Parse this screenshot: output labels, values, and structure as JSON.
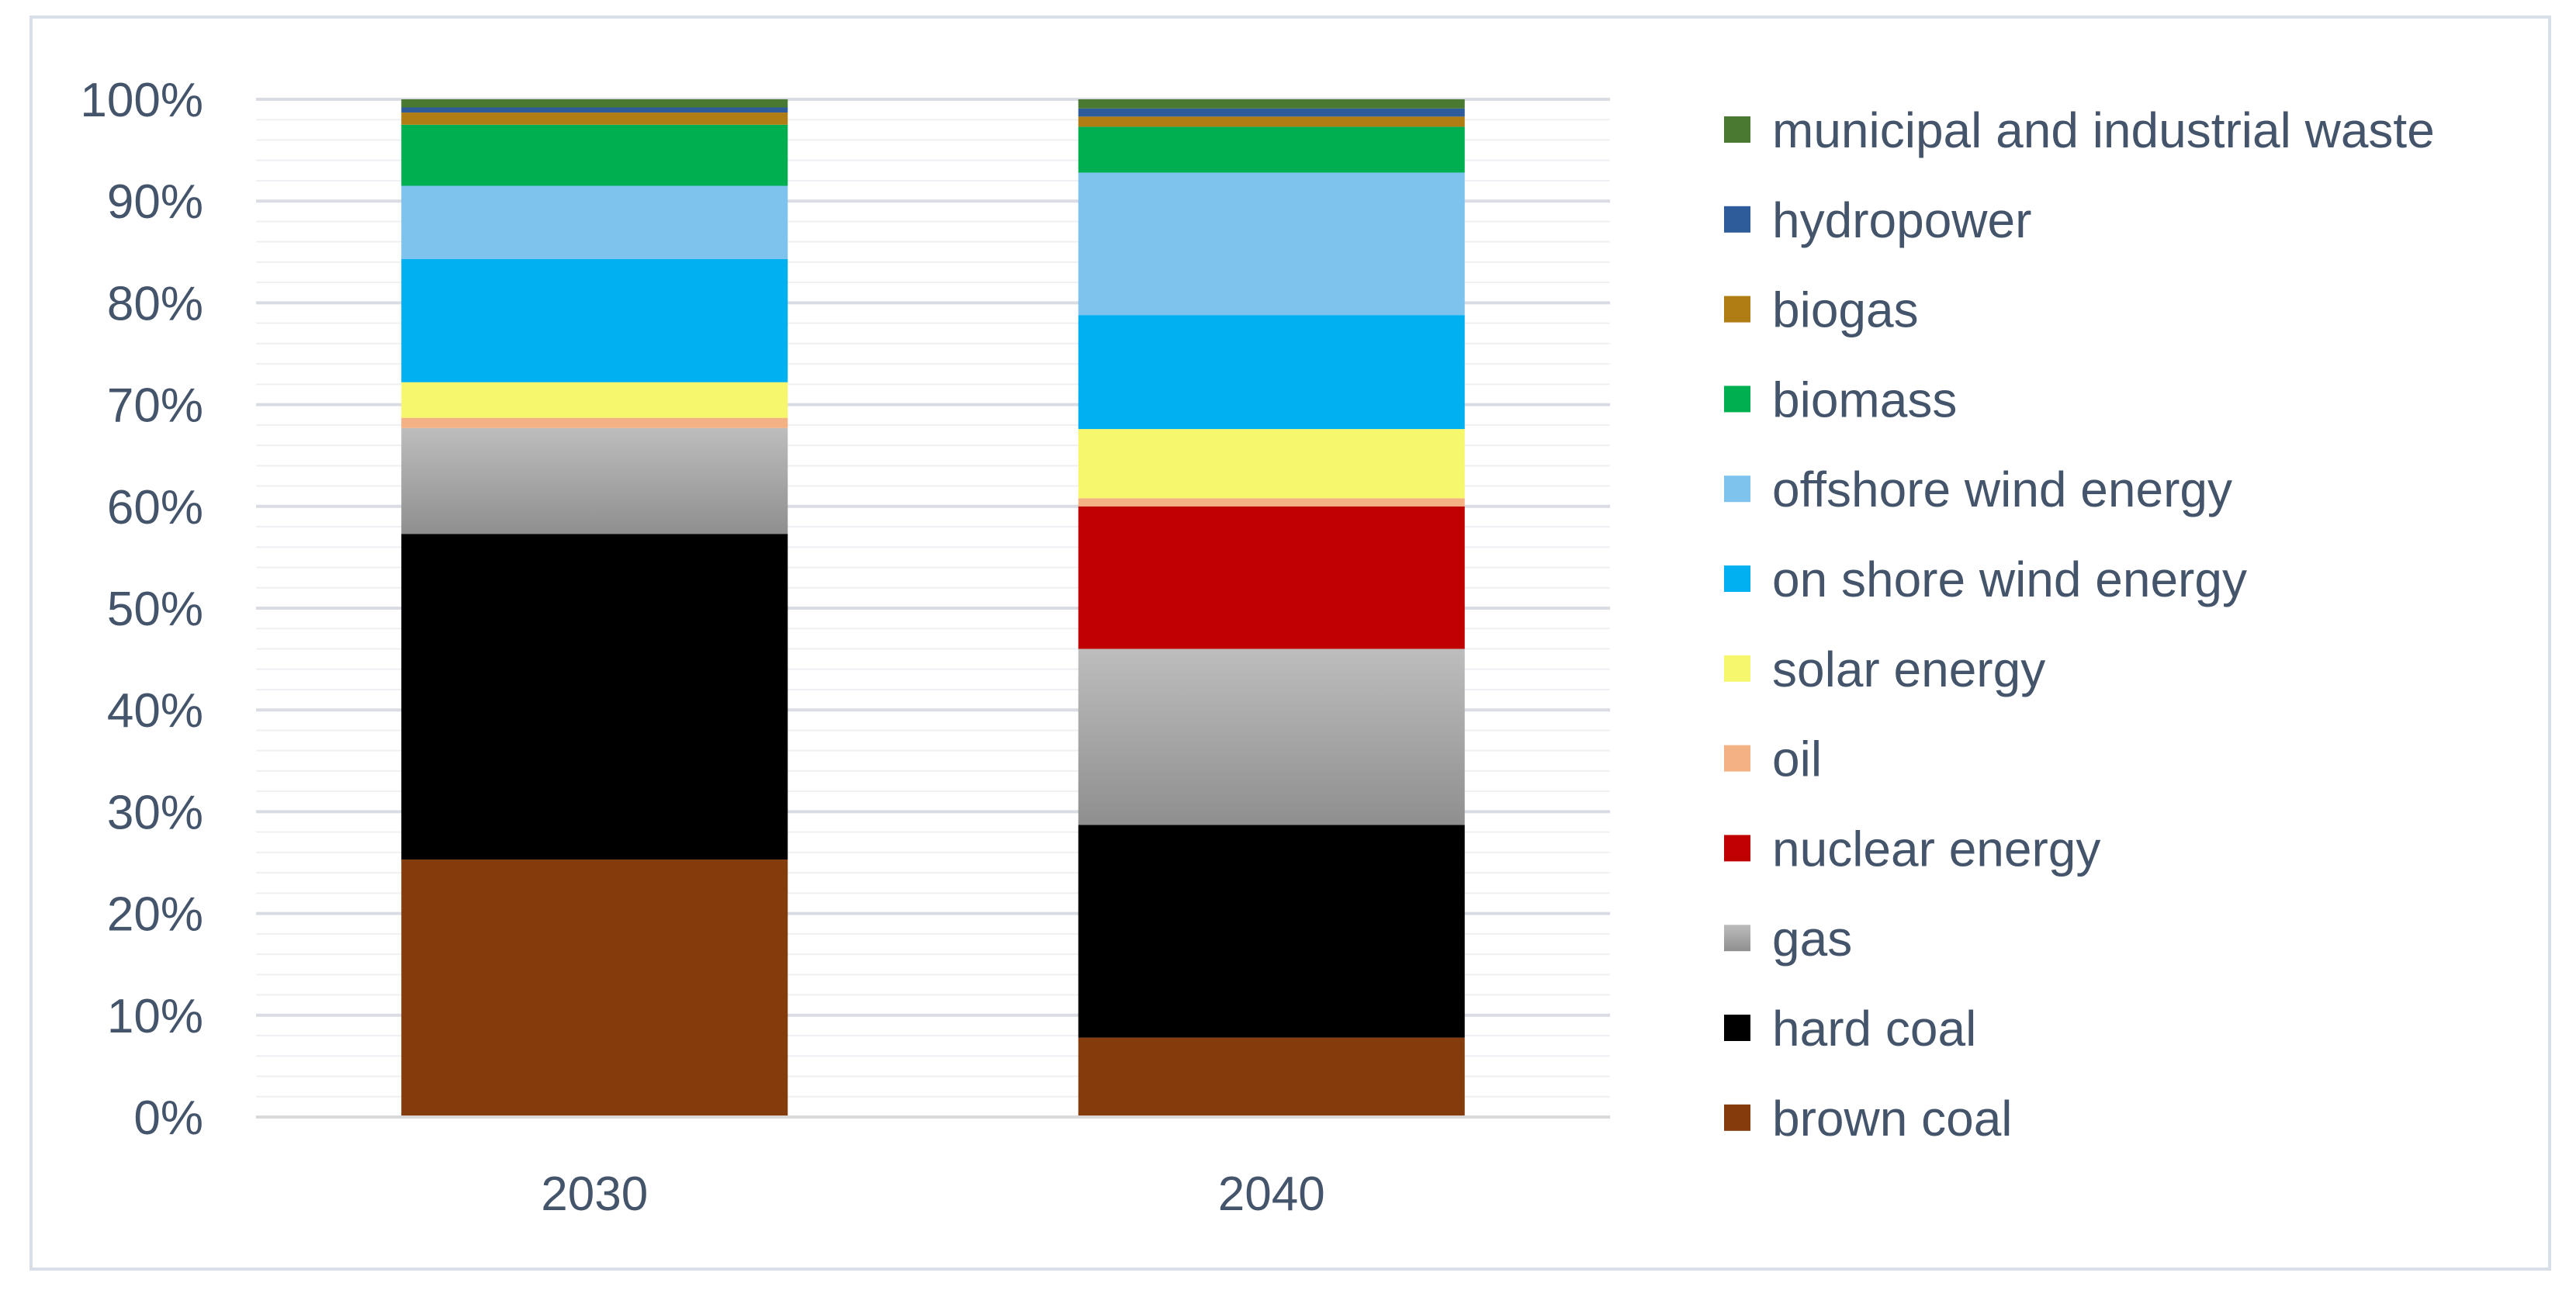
{
  "chart_data": {
    "type": "bar",
    "stacked": true,
    "percent": true,
    "title": "",
    "xlabel": "",
    "ylabel": "",
    "ylim": [
      0,
      100
    ],
    "y_ticks": [
      "0%",
      "10%",
      "20%",
      "30%",
      "40%",
      "50%",
      "60%",
      "70%",
      "80%",
      "90%",
      "100%"
    ],
    "categories": [
      "2030",
      "2040"
    ],
    "series": [
      {
        "name": "brown coal",
        "color": "#843c0c",
        "values": [
          25.3,
          7.8
        ]
      },
      {
        "name": "hard coal",
        "color": "#000000",
        "values": [
          32.0,
          20.9
        ]
      },
      {
        "name": "gas",
        "color": "#a6a6a6",
        "values": [
          10.4,
          17.3
        ]
      },
      {
        "name": "nuclear energy",
        "color": "#c00000",
        "values": [
          0,
          14.0
        ]
      },
      {
        "name": "oil",
        "color": "#f4b183",
        "values": [
          1.0,
          0.8
        ]
      },
      {
        "name": "solar energy",
        "color": "#f7f76e",
        "values": [
          3.5,
          6.8
        ]
      },
      {
        "name": "on shore wind energy",
        "color": "#00b0f0",
        "values": [
          12.1,
          11.2
        ]
      },
      {
        "name": "offshore wind energy",
        "color": "#7dc3ee",
        "values": [
          7.2,
          14.0
        ]
      },
      {
        "name": "biomass",
        "color": "#00b050",
        "values": [
          6.0,
          4.5
        ]
      },
      {
        "name": "biogas",
        "color": "#b07c14",
        "values": [
          1.2,
          1.0
        ]
      },
      {
        "name": "hydropower",
        "color": "#2e5b9a",
        "values": [
          0.5,
          0.8
        ]
      },
      {
        "name": "municipal and industrial waste",
        "color": "#4a7a32",
        "values": [
          0.8,
          0.9
        ]
      }
    ],
    "legend_position": "right",
    "grid": true
  }
}
